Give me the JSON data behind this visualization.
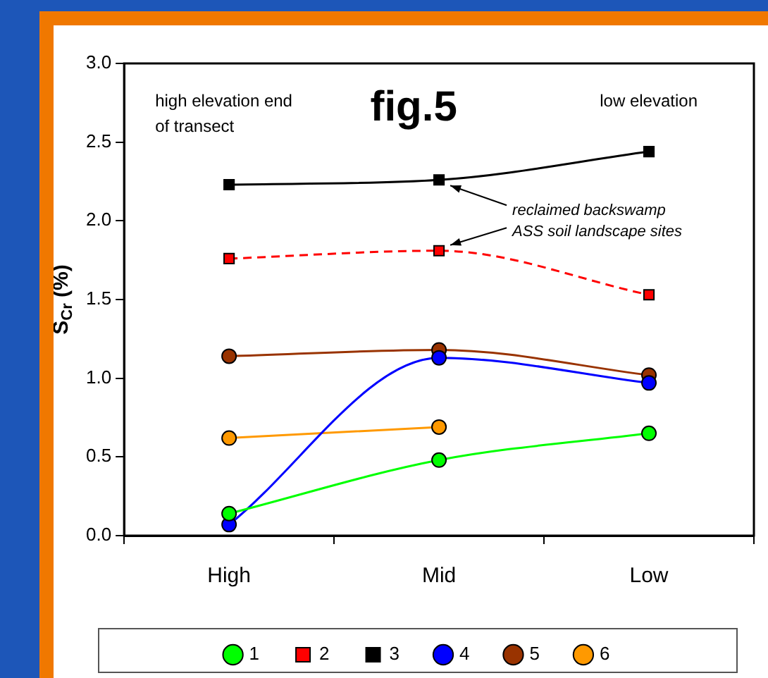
{
  "chart_data": {
    "type": "line",
    "title": "fig.5",
    "ylabel": "S$_{Cr}$ (%)",
    "categories": [
      "High",
      "Mid",
      "Low"
    ],
    "series": [
      {
        "name": "1",
        "color": "#00ff00",
        "values": [
          0.14,
          0.48,
          0.65
        ],
        "marker": "circle",
        "line_style": "solid"
      },
      {
        "name": "2",
        "color": "#ff0000",
        "values": [
          1.76,
          1.81,
          1.53
        ],
        "marker": "square",
        "line_style": "dashed"
      },
      {
        "name": "3",
        "color": "#000000",
        "values": [
          2.23,
          2.26,
          2.44
        ],
        "marker": "square",
        "line_style": "solid"
      },
      {
        "name": "4",
        "color": "#0000ff",
        "values": [
          0.07,
          1.13,
          0.97
        ],
        "marker": "circle",
        "line_style": "solid"
      },
      {
        "name": "5",
        "color": "#993300",
        "values": [
          1.14,
          1.18,
          1.02
        ],
        "marker": "circle",
        "line_style": "solid"
      },
      {
        "name": "6",
        "color": "#ff9900",
        "values": [
          0.62,
          0.69,
          null
        ],
        "marker": "circle",
        "line_style": "solid"
      }
    ],
    "ylim": [
      0,
      3
    ],
    "yticks": [
      {
        "value": 0,
        "label": "0.0"
      },
      {
        "value": 0.5,
        "label": "0.5"
      },
      {
        "value": 1,
        "label": "1.0"
      },
      {
        "value": 1.5,
        "label": "1.5"
      },
      {
        "value": 2,
        "label": "2.0"
      },
      {
        "value": 2.5,
        "label": "2.5"
      },
      {
        "value": 3,
        "label": "3.0"
      }
    ],
    "grid": false,
    "legend": "bottom",
    "annotations": [
      "high elevation end\nof transect",
      "low elevation",
      {
        "text": "reclaimed backswamp\nASS soil landscape sites",
        "x": "Mid",
        "y": 2.26
      }
    ]
  }
}
